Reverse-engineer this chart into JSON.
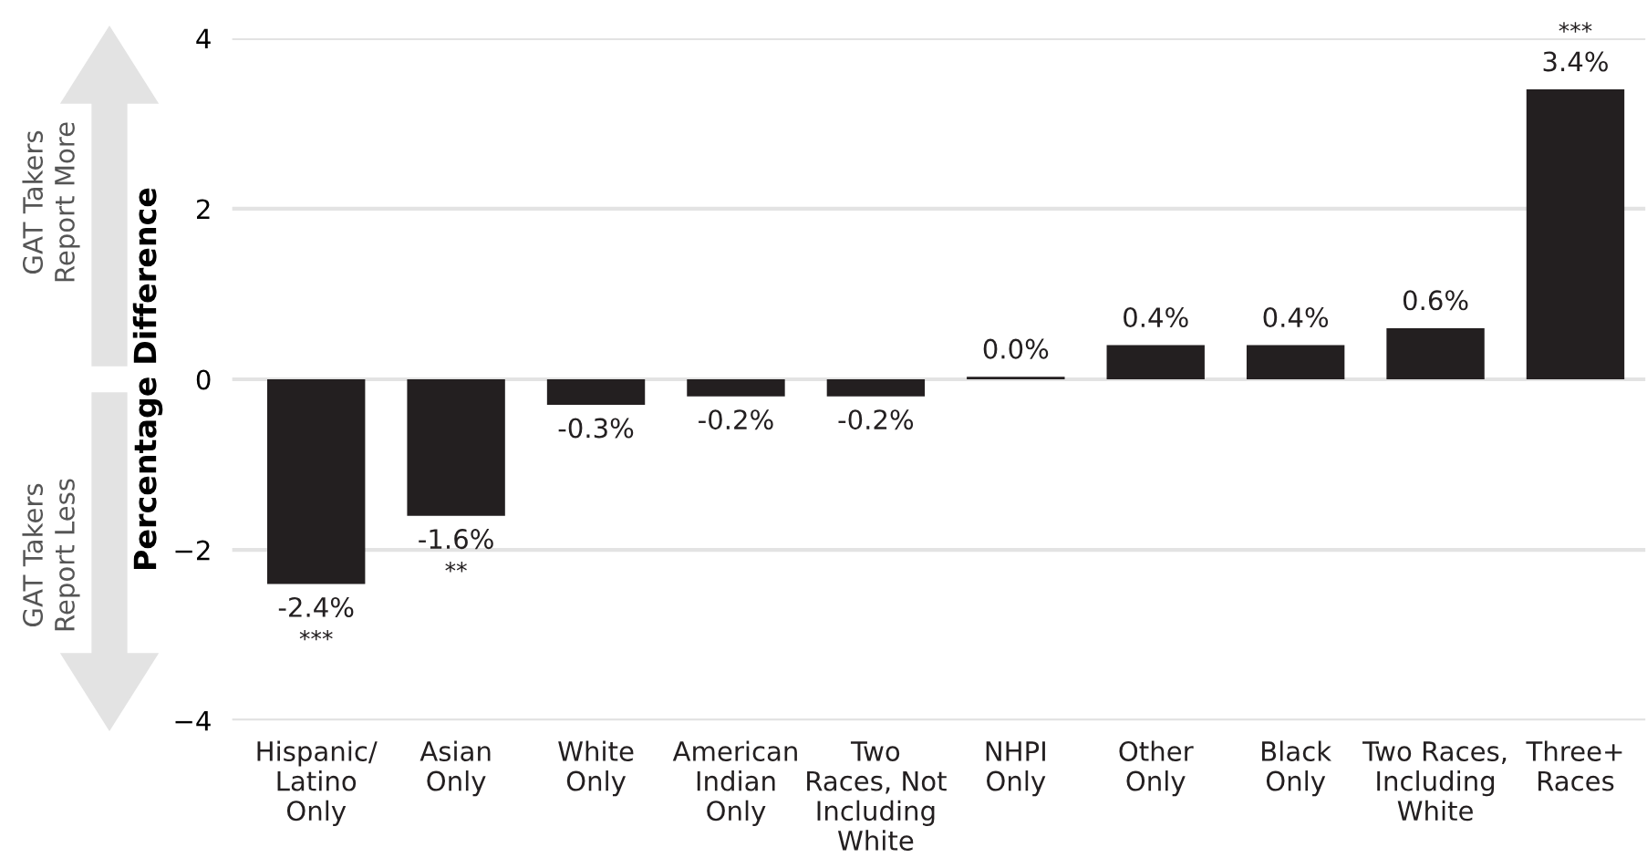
{
  "chart_data": {
    "type": "bar",
    "categories": [
      "Hispanic/\nLatino\nOnly",
      "Asian\nOnly",
      "White\nOnly",
      "American\nIndian\nOnly",
      "Two\nRaces, Not\nIncluding\nWhite",
      "NHPI\nOnly",
      "Other\nOnly",
      "Black\nOnly",
      "Two Races,\nIncluding\nWhite",
      "Three+\nRaces"
    ],
    "values": [
      -2.4,
      -1.6,
      -0.3,
      -0.2,
      -0.2,
      0.03,
      0.4,
      0.4,
      0.6,
      3.4
    ],
    "value_labels": [
      "-2.4%",
      "-1.6%",
      "-0.3%",
      "-0.2%",
      "-0.2%",
      "0.0%",
      "0.4%",
      "0.4%",
      "0.6%",
      "3.4%"
    ],
    "color": "#231f20",
    "ylabel": "Percentage Difference",
    "ylim": [
      -4,
      4
    ],
    "yticks": [
      {
        "value": -4,
        "label": "−4"
      },
      {
        "value": -2,
        "label": "−2"
      },
      0,
      2,
      4
    ],
    "grid": "y",
    "annotations": [
      {
        "text": "***",
        "x": "Hispanic/\nLatino\nOnly",
        "y": -2.4
      },
      {
        "text": "**",
        "x": "Asian\nOnly",
        "y": -1.6
      },
      {
        "text": "***",
        "x": "Three+\nRaces",
        "y": 3.4
      },
      "GAT Takers\nReport More",
      "GAT Takers\nReport Less"
    ]
  }
}
